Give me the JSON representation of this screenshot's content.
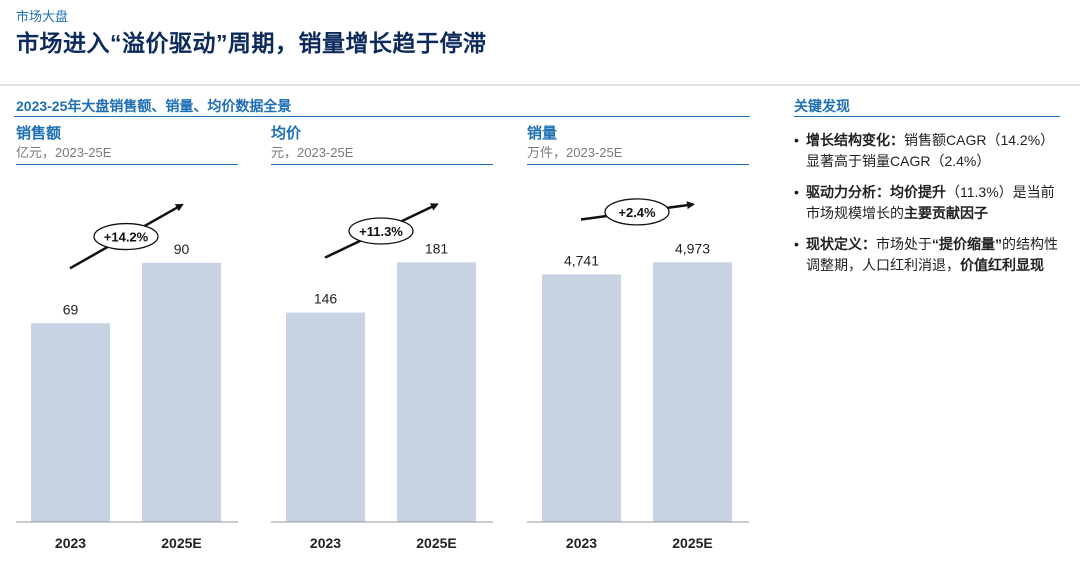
{
  "header": {
    "eyebrow": "市场大盘",
    "title": "市场进入“溢价驱动”周期，销量增长趋于停滞"
  },
  "section": {
    "title": "2023-25年大盘销售额、销量、均价数据全景"
  },
  "colors": {
    "accent": "#1f6fb5",
    "title": "#0d2a5c",
    "bar": "#c7d2e3"
  },
  "chart_data": [
    {
      "type": "bar",
      "title": "销售额",
      "unit": "亿元，2023-25E",
      "categories": [
        "2023",
        "2025E"
      ],
      "values": [
        69,
        90
      ],
      "value_labels": [
        "69",
        "90"
      ],
      "growth_label": "+14.2%",
      "ylim": [
        0,
        125
      ]
    },
    {
      "type": "bar",
      "title": "均价",
      "unit": "元，2023-25E",
      "categories": [
        "2023",
        "2025E"
      ],
      "values": [
        146,
        181
      ],
      "value_labels": [
        "146",
        "181"
      ],
      "growth_label": "+11.3%",
      "ylim": [
        0,
        251
      ]
    },
    {
      "type": "bar",
      "title": "销量",
      "unit": "万件，2023-25E",
      "categories": [
        "2023",
        "2025E"
      ],
      "values": [
        4741,
        4973
      ],
      "value_labels": [
        "4,741",
        "4,973"
      ],
      "growth_label": "+2.4%",
      "ylim": [
        0,
        6895
      ]
    }
  ],
  "key_findings": {
    "title": "关键发现",
    "items": [
      {
        "bold": "增长结构变化：",
        "text": "销售额CAGR（14.2%）显著高于销量CAGR（2.4%）"
      },
      {
        "bold": "驱动力分析：均价提升",
        "text": "（11.3%）是当前市场规模增长的",
        "bold2": "主要贡献因子"
      },
      {
        "bold": "现状定义：",
        "text": "市场处于",
        "bold2": "“提价缩量”",
        "text2": "的结构性调整期，人口红利消退，",
        "bold3": "价值红利显现"
      }
    ]
  }
}
